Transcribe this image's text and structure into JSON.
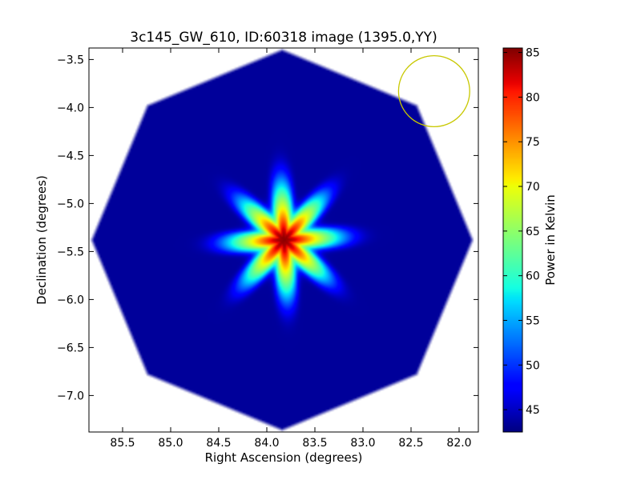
{
  "chart_data": {
    "type": "heatmap",
    "title": "3c145_GW_610, ID:60318 image (1395.0,YY)",
    "xlabel": "Right Ascension (degrees)",
    "ylabel": "Declination (degrees)",
    "colorbar_label": "Power in Kelvin",
    "colormap": "jet",
    "xlim": [
      85.85,
      81.8
    ],
    "ylim": [
      -7.38,
      -3.38
    ],
    "x_ticks": [
      85.5,
      85.0,
      84.5,
      84.0,
      83.5,
      83.0,
      82.5,
      82.0
    ],
    "x_tick_labels": [
      "85.5",
      "85.0",
      "84.5",
      "84.0",
      "83.5",
      "83.0",
      "82.5",
      "82.0"
    ],
    "y_ticks": [
      -3.5,
      -4.0,
      -4.5,
      -5.0,
      -5.5,
      -6.0,
      -6.5,
      -7.0
    ],
    "y_tick_labels": [
      "−3.5",
      "−4.0",
      "−4.5",
      "−5.0",
      "−5.5",
      "−6.0",
      "−6.5",
      "−7.0"
    ],
    "colorbar_range": [
      42.5,
      85.5
    ],
    "colorbar_ticks": [
      45,
      50,
      55,
      60,
      65,
      70,
      75,
      80,
      85
    ],
    "colorbar_tick_labels": [
      "45",
      "50",
      "55",
      "60",
      "65",
      "70",
      "75",
      "80",
      "85"
    ],
    "footprint": {
      "shape": "octagon",
      "center_ra": 83.84,
      "center_dec": -5.38,
      "circumradius_deg": 1.98,
      "background_value": 43.5
    },
    "source": {
      "ra": 83.82,
      "dec": -5.38,
      "peak_value": 85,
      "shape": "8-point star"
    },
    "marker_circle": {
      "ra": 82.26,
      "dec": -3.83,
      "radius_deg": 0.37,
      "color": "#c8c800"
    }
  }
}
